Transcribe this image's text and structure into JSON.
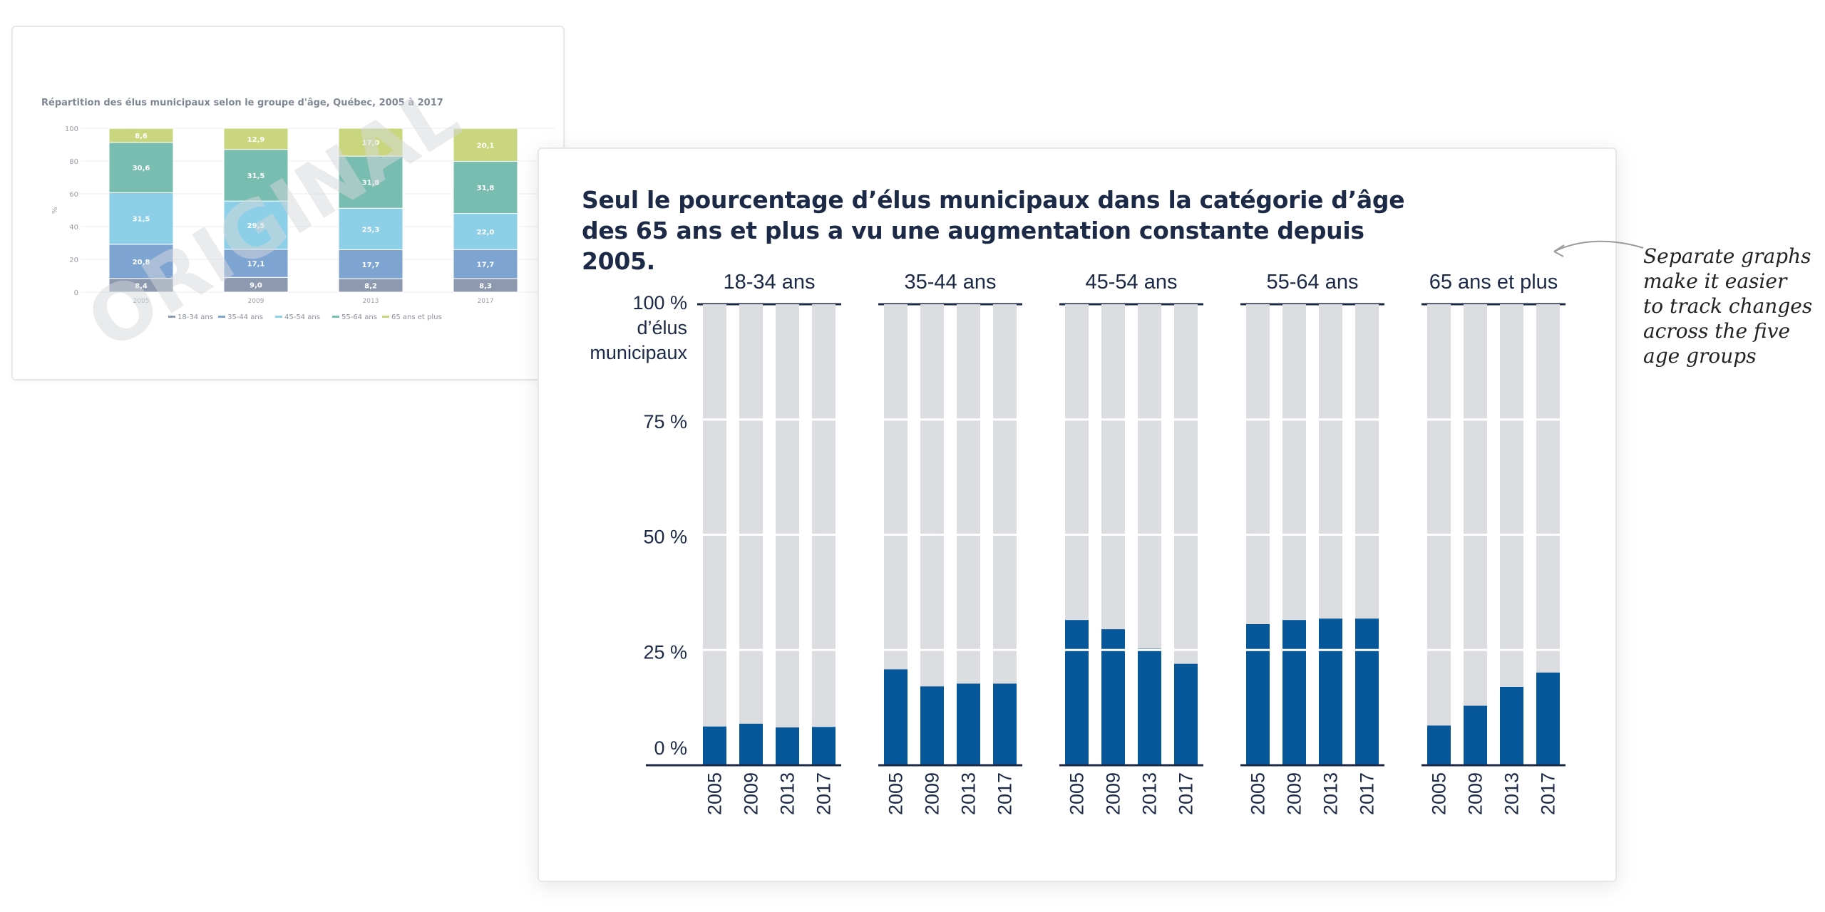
{
  "original": {
    "title": "Répartition des élus municipaux selon le groupe d'âge, Québec, 2005 à 2017",
    "watermark": "ORIGINAL",
    "ylabel": "%",
    "yticks": [
      "0",
      "20",
      "40",
      "60",
      "80",
      "100"
    ],
    "years": [
      "2005",
      "2009",
      "2013",
      "2017"
    ],
    "segment_labels": [
      [
        "8,4",
        "20,8",
        "31,5",
        "30,6",
        "8,6"
      ],
      [
        "9,0",
        "17,1",
        "29,5",
        "31,5",
        "12,9"
      ],
      [
        "8,2",
        "17,7",
        "25,3",
        "31,8",
        "17,0"
      ],
      [
        "8,3",
        "17,7",
        "22,0",
        "31,8",
        "20,1"
      ]
    ],
    "legend": [
      "18-34 ans",
      "35-44 ans",
      "45-54 ans",
      "55-64 ans",
      "65 ans et plus"
    ],
    "colors": [
      "#8d99ae",
      "#7ea5d2",
      "#8ccfe6",
      "#79bdb0",
      "#c9d67e"
    ]
  },
  "main": {
    "title": "Seul le pourcentage d’élus municipaux dans la catégorie d’âge des 65 ans et plus a vu une augmentation constante depuis 2005.",
    "y_axis_title": [
      "d’élus",
      "municipaux"
    ],
    "yticks": [
      "0 %",
      "25 %",
      "50 %",
      "75 %",
      "100 %"
    ]
  },
  "annotation": [
    "Separate graphs",
    "make it easier",
    "to track changes",
    "across the five",
    "age groups"
  ],
  "chart_data": [
    {
      "type": "bar",
      "stacked": true,
      "title": "Répartition des élus municipaux selon le groupe d'âge, Québec, 2005 à 2017",
      "xlabel": "",
      "ylabel": "%",
      "ylim": [
        0,
        100
      ],
      "categories": [
        "2005",
        "2009",
        "2013",
        "2017"
      ],
      "series": [
        {
          "name": "18-34 ans",
          "values": [
            8.4,
            9.0,
            8.2,
            8.3
          ]
        },
        {
          "name": "35-44 ans",
          "values": [
            20.8,
            17.1,
            17.7,
            17.7
          ]
        },
        {
          "name": "45-54 ans",
          "values": [
            31.5,
            29.5,
            25.3,
            22.0
          ]
        },
        {
          "name": "55-64 ans",
          "values": [
            30.6,
            31.5,
            31.8,
            31.8
          ]
        },
        {
          "name": "65 ans et plus",
          "values": [
            8.6,
            12.9,
            17.0,
            20.1
          ]
        }
      ],
      "legend": "bottom",
      "grid": true
    },
    {
      "type": "bar",
      "small_multiples": true,
      "title": "Seul le pourcentage d’élus municipaux dans la catégorie d’âge des 65 ans et plus a vu une augmentation constante depuis 2005.",
      "ylabel": "100 % d’élus municipaux",
      "ylim": [
        0,
        100
      ],
      "categories": [
        "2005",
        "2009",
        "2013",
        "2017"
      ],
      "panels": [
        {
          "name": "18-34 ans",
          "values": [
            8.4,
            9.0,
            8.2,
            8.3
          ]
        },
        {
          "name": "35-44 ans",
          "values": [
            20.8,
            17.1,
            17.7,
            17.7
          ]
        },
        {
          "name": "45-54 ans",
          "values": [
            31.5,
            29.5,
            25.3,
            22.0
          ]
        },
        {
          "name": "55-64 ans",
          "values": [
            30.6,
            31.5,
            31.8,
            31.8
          ]
        },
        {
          "name": "65 ans et plus",
          "values": [
            8.6,
            12.9,
            17.0,
            20.1
          ]
        }
      ],
      "colors": {
        "bar": "#07589a",
        "background_bar": "#dcdde0",
        "text": "#1c2a48"
      },
      "grid": true
    }
  ]
}
